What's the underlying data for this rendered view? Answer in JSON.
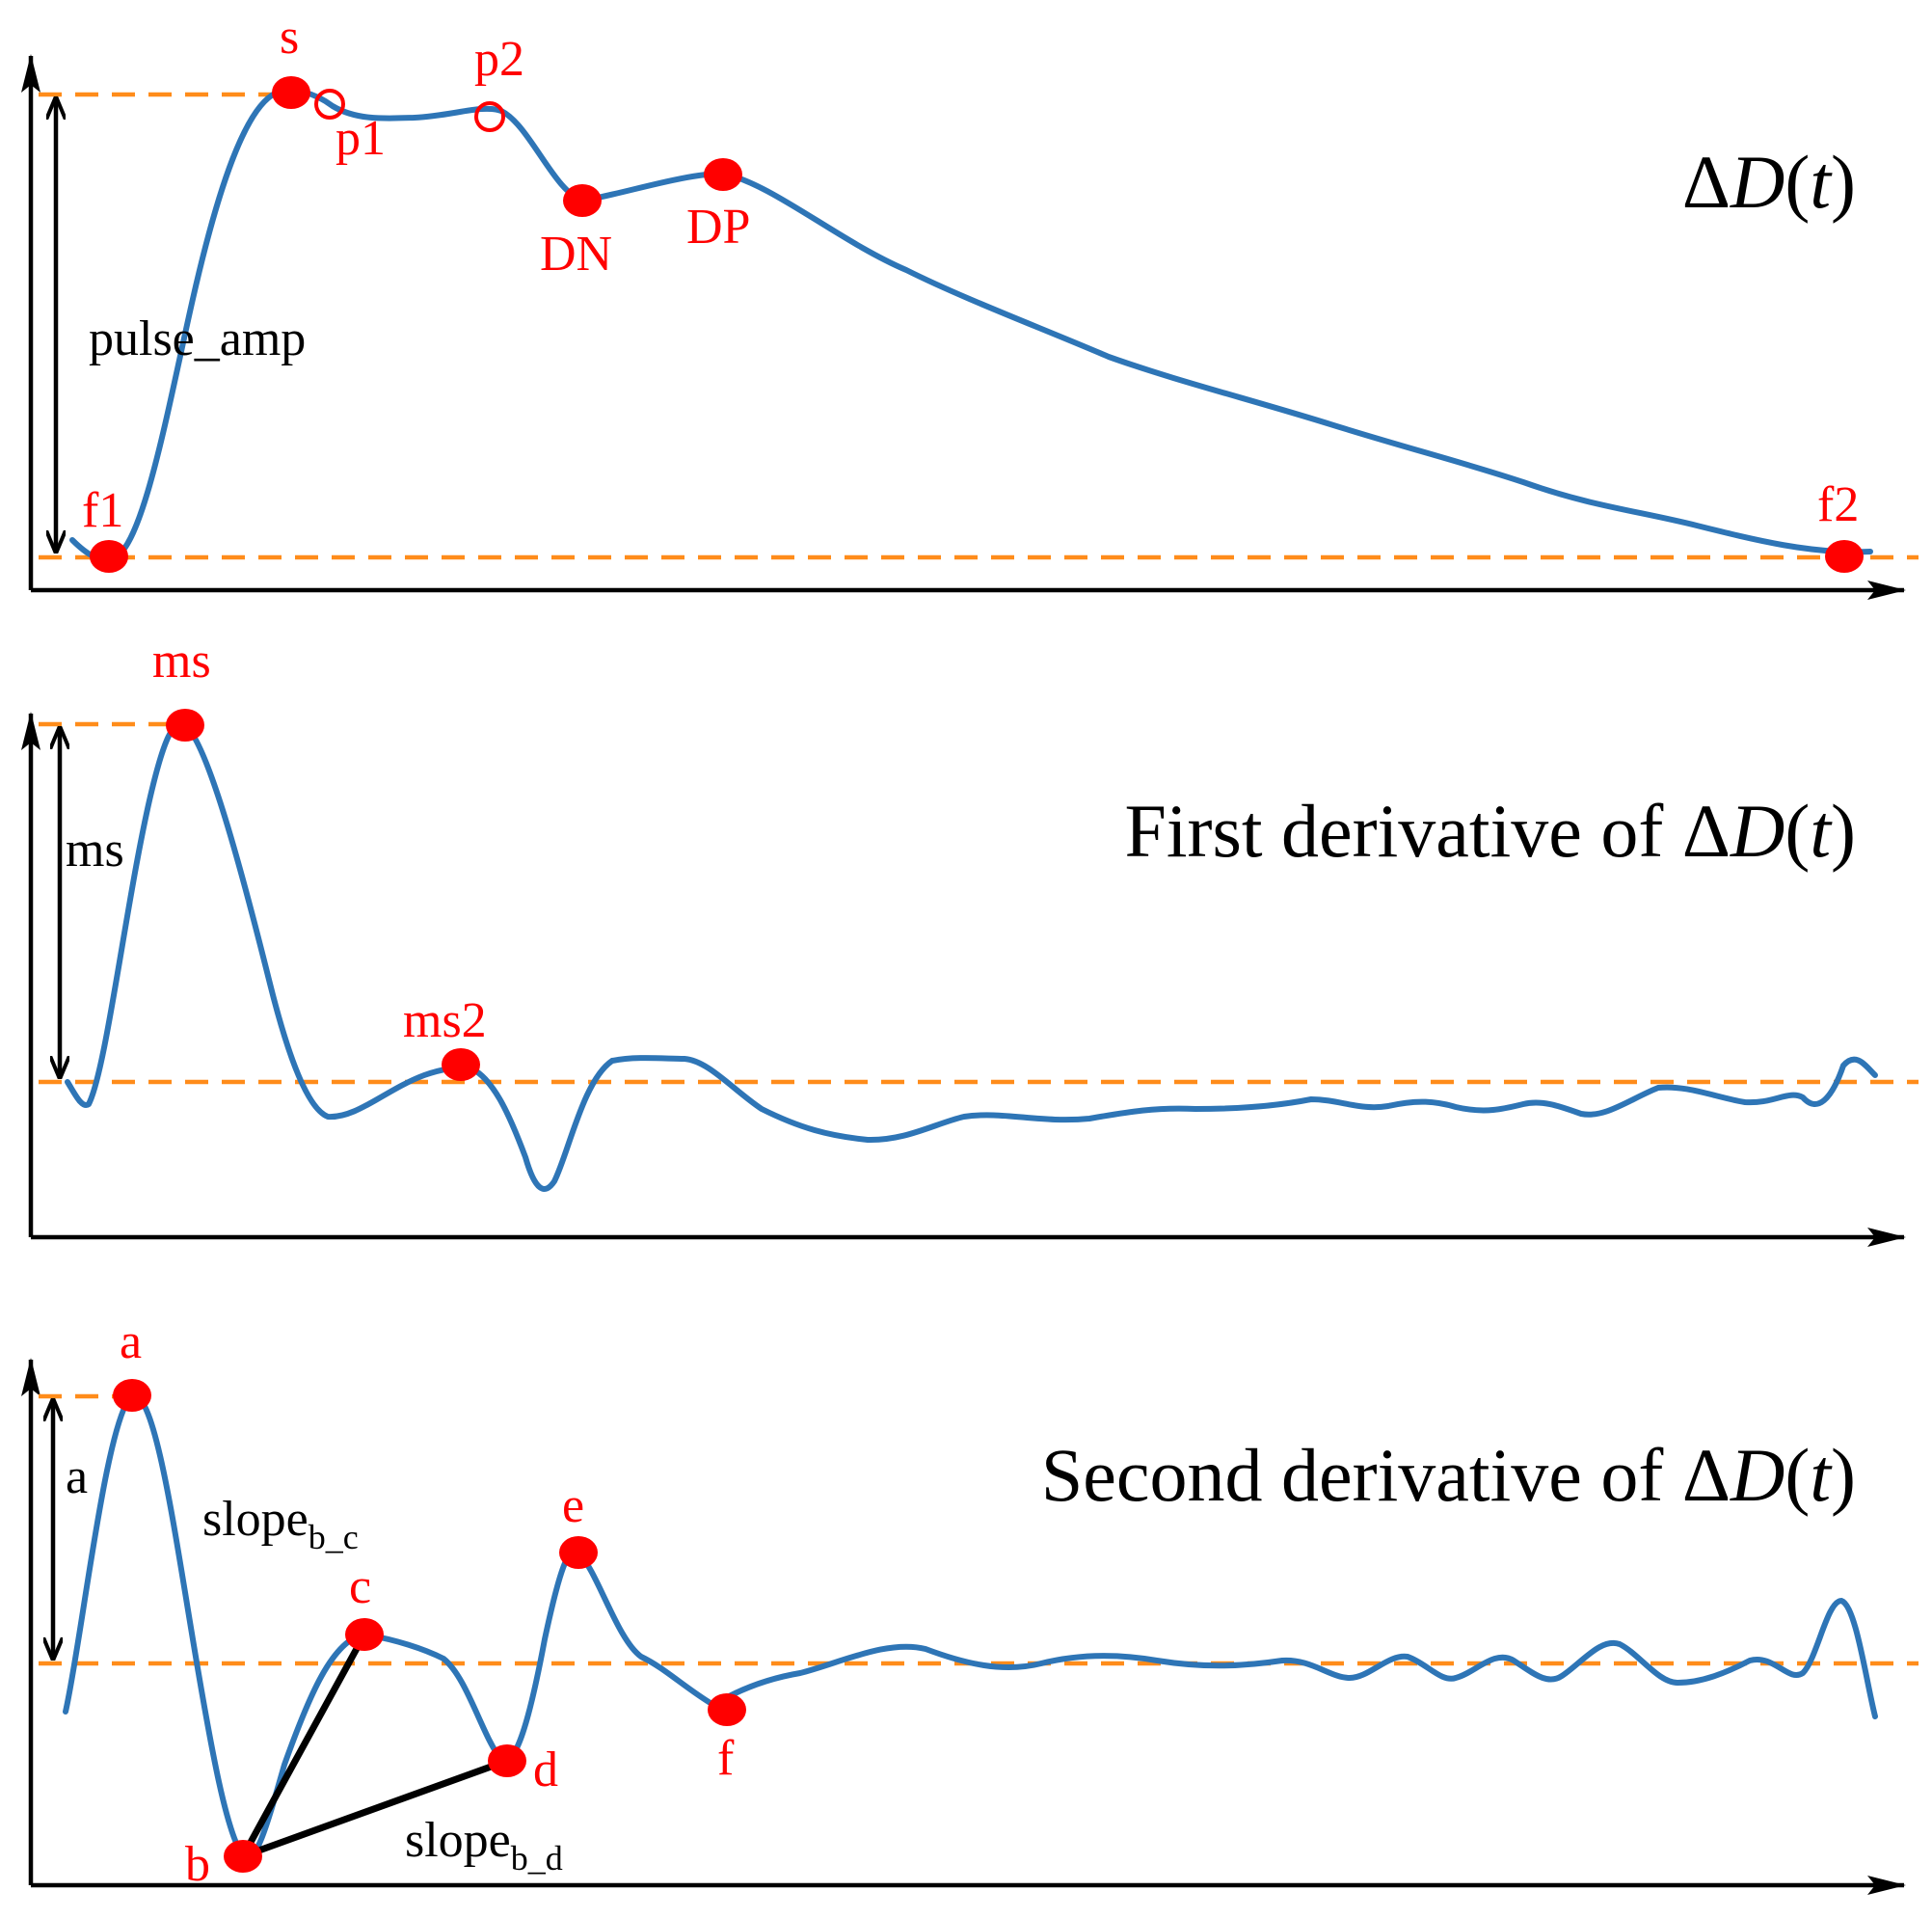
{
  "colors": {
    "curve": "#2e75b6",
    "reference": "#ff8c1a",
    "marker": "#ff0000",
    "axis": "#000000"
  },
  "panels": [
    {
      "id": "pulse",
      "title": {
        "prefix": "",
        "delta": "Δ",
        "var": "D",
        "open": "(",
        "t": "t",
        "close": ")"
      },
      "amplitude_label": "pulse_amp",
      "points": {
        "s": "s",
        "p1": "p1",
        "p2": "p2",
        "DN": "DN",
        "DP": "DP",
        "f1": "f1",
        "f2": "f2"
      }
    },
    {
      "id": "first_derivative",
      "title": {
        "prefix": "First derivative of ",
        "delta": "Δ",
        "var": "D",
        "open": "(",
        "t": "t",
        "close": ")"
      },
      "amplitude_label": "ms",
      "points": {
        "ms": "ms",
        "ms2": "ms2"
      }
    },
    {
      "id": "second_derivative",
      "title": {
        "prefix": "Second derivative of ",
        "delta": "Δ",
        "var": "D",
        "open": "(",
        "t": "t",
        "close": ")"
      },
      "amplitude_label": "a",
      "points": {
        "a": "a",
        "b": "b",
        "c": "c",
        "d": "d",
        "e": "e",
        "f": "f"
      },
      "slope_bc": {
        "base": "slope",
        "sub": "b_c"
      },
      "slope_bd": {
        "base": "slope",
        "sub": "b_d"
      }
    }
  ]
}
